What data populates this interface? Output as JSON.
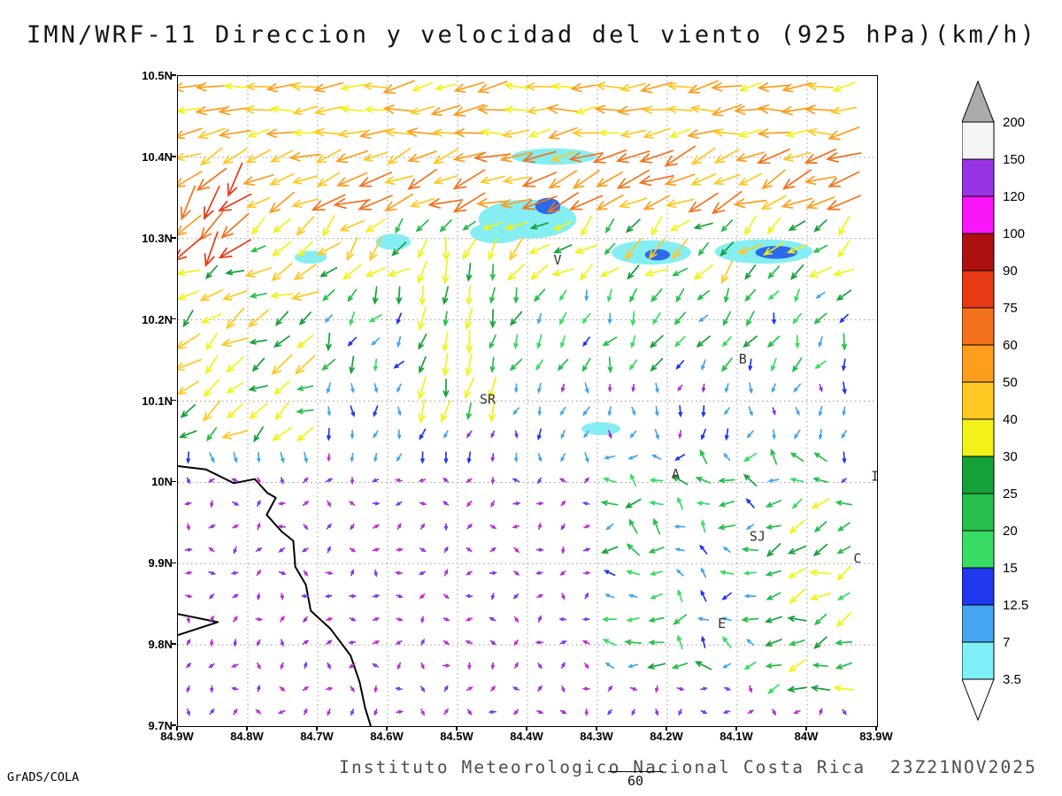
{
  "title": "IMN/WRF-11 Direccion y velocidad del viento (925 hPa)(km/h)",
  "footer": "Instituto Meteorologico Nacional Costa Rica  23Z21NOV2025",
  "credits": "GrADS/COLA",
  "ref_vector_label": "60",
  "chart_data": {
    "type": "vector_field",
    "title": "IMN/WRF-11 Direccion y velocidad del viento (925 hPa)(km/h)",
    "units": "km/h",
    "level": "925 hPa",
    "valid_time": "23Z21NOV2025",
    "institution": "Instituto Meteorologico Nacional Costa Rica",
    "reference_vector": 60,
    "grid_on": true,
    "grid_color": "#999999",
    "lon_axis": {
      "labels": [
        "84.9W",
        "84.8W",
        "84.7W",
        "84.6W",
        "84.5W",
        "84.4W",
        "84.3W",
        "84.2W",
        "84.1W",
        "84W",
        "83.9W"
      ],
      "values": [
        84.9,
        84.8,
        84.7,
        84.6,
        84.5,
        84.4,
        84.3,
        84.2,
        84.1,
        84.0,
        83.9
      ]
    },
    "lat_axis": {
      "labels": [
        "10.5N",
        "10.4N",
        "10.3N",
        "10.2N",
        "10.1N",
        "10N",
        "9.9N",
        "9.8N",
        "9.7N"
      ],
      "values": [
        10.5,
        10.4,
        10.3,
        10.2,
        10.1,
        10.0,
        9.9,
        9.8,
        9.7
      ]
    },
    "colorbar": {
      "position": "right",
      "labels_top_to_bottom": [
        "200",
        "150",
        "120",
        "100",
        "90",
        "75",
        "60",
        "50",
        "40",
        "30",
        "25",
        "20",
        "15",
        "12.5",
        "7",
        "3.5"
      ],
      "colors_top_to_bottom": [
        "#F4F4F4",
        "#9933E6",
        "#FA14FA",
        "#AE1010",
        "#E63914",
        "#F4711C",
        "#FF9D1E",
        "#FFC822",
        "#F2F218",
        "#16A038",
        "#27BE4B",
        "#38DC62",
        "#2038EE",
        "#45A5F0",
        "#7FF0F8"
      ],
      "above_color": "#ABABAB",
      "below_color": "#FFFFFF"
    },
    "cloud_colors": {
      "light": "#85EEF2",
      "core": "#2B6BEA"
    },
    "cloud_shading": [
      {
        "lon": 84.362,
        "lat": 10.401,
        "rlon": 0.061,
        "rlat": 0.01,
        "level": "light"
      },
      {
        "lon": 84.4,
        "lat": 10.324,
        "rlon": 0.07,
        "rlat": 0.024,
        "level": "light"
      },
      {
        "lon": 84.444,
        "lat": 10.307,
        "rlon": 0.038,
        "rlat": 0.013,
        "level": "light"
      },
      {
        "lon": 84.71,
        "lat": 10.277,
        "rlon": 0.023,
        "rlat": 0.008,
        "level": "light"
      },
      {
        "lon": 84.592,
        "lat": 10.296,
        "rlon": 0.025,
        "rlat": 0.01,
        "level": "light"
      },
      {
        "lon": 84.223,
        "lat": 10.283,
        "rlon": 0.057,
        "rlat": 0.015,
        "level": "light"
      },
      {
        "lon": 84.062,
        "lat": 10.284,
        "rlon": 0.07,
        "rlat": 0.015,
        "level": "light"
      },
      {
        "lon": 84.295,
        "lat": 10.066,
        "rlon": 0.028,
        "rlat": 0.008,
        "level": "light"
      },
      {
        "lon": 84.371,
        "lat": 10.34,
        "rlon": 0.018,
        "rlat": 0.01,
        "level": "core"
      },
      {
        "lon": 84.214,
        "lat": 10.28,
        "rlon": 0.018,
        "rlat": 0.007,
        "level": "core"
      },
      {
        "lon": 84.044,
        "lat": 10.283,
        "rlon": 0.03,
        "rlat": 0.008,
        "level": "core"
      }
    ],
    "coastline": [
      [
        [
          84.9,
          10.02
        ],
        [
          84.86,
          10.016
        ],
        [
          84.82,
          9.999
        ],
        [
          84.79,
          10.004
        ],
        [
          84.772,
          9.987
        ],
        [
          84.76,
          9.981
        ],
        [
          84.773,
          9.96
        ],
        [
          84.751,
          9.939
        ],
        [
          84.735,
          9.928
        ],
        [
          84.732,
          9.896
        ],
        [
          84.717,
          9.874
        ],
        [
          84.71,
          9.842
        ],
        [
          84.682,
          9.82
        ],
        [
          84.653,
          9.787
        ],
        [
          84.64,
          9.754
        ],
        [
          84.632,
          9.722
        ],
        [
          84.624,
          9.7
        ]
      ],
      [
        [
          84.9,
          9.838
        ],
        [
          84.843,
          9.828
        ],
        [
          84.9,
          9.812
        ]
      ]
    ],
    "stations": [
      {
        "label": "V",
        "lon": 84.357,
        "lat": 10.268
      },
      {
        "label": "B",
        "lon": 84.092,
        "lat": 10.146
      },
      {
        "label": "SR",
        "lon": 84.457,
        "lat": 10.097
      },
      {
        "label": "A",
        "lon": 84.188,
        "lat": 10.005
      },
      {
        "label": "SJ",
        "lon": 84.071,
        "lat": 9.928
      },
      {
        "label": "C",
        "lon": 83.928,
        "lat": 9.901
      },
      {
        "label": "E",
        "lon": 84.122,
        "lat": 9.821
      },
      {
        "label": "I",
        "lon": 83.903,
        "lat": 10.002
      }
    ],
    "arrow_palette": {
      "calm_below": 6.5,
      "calm_colors": [
        "#9B30DC",
        "#B333D6",
        "#7E3BE8",
        "#C42ECF"
      ],
      "thresholds": [
        7,
        12.5,
        15,
        20,
        25,
        30,
        40,
        50,
        60,
        75,
        90,
        100
      ],
      "colors": [
        "#9B30DC",
        "#45A5F0",
        "#2038EE",
        "#38DC62",
        "#27BE4B",
        "#16A038",
        "#F2F218",
        "#FFC822",
        "#FF9D1E",
        "#F4711C",
        "#E63914",
        "#AE1010",
        "#F514F5"
      ]
    },
    "flow_model": {
      "grid": {
        "lon_start": 84.885,
        "lon_end": 83.915,
        "lon_step": 0.0335,
        "lat_start": 10.487,
        "lat_end": 9.712,
        "lat_step": 0.0285
      },
      "bands": [
        {
          "lat_min": 10.42,
          "lat_max": 10.55,
          "dir": 264,
          "dir_var": 16,
          "speed": 46,
          "speed_var": 13
        },
        {
          "lat_min": 10.32,
          "lat_max": 10.42,
          "dir": 247,
          "dir_var": 18,
          "speed": 56,
          "speed_var": 15
        },
        {
          "lat_min": 10.24,
          "lat_max": 10.32,
          "dir": 230,
          "dir_var": 26,
          "speed": 33,
          "speed_var": 12
        },
        {
          "lat_min": 10.12,
          "lat_max": 10.24,
          "dir": 207,
          "dir_var": 32,
          "speed": 19,
          "speed_var": 8
        },
        {
          "lat_min": 10.02,
          "lat_max": 10.12,
          "dir": 190,
          "dir_var": 36,
          "speed": 10,
          "speed_var": 5
        },
        {
          "lat_min": 9.6,
          "lat_max": 10.02,
          "dir": 165,
          "dir_var": 150,
          "speed": 3.0,
          "speed_var": 2.0
        }
      ],
      "patches": [
        {
          "lon_min": 84.7,
          "lon_max": 84.92,
          "lat_min": 10.04,
          "lat_max": 10.28,
          "dir": 237,
          "dir_var": 28,
          "speed": 36,
          "speed_var": 13
        },
        {
          "lon_min": 84.8,
          "lon_max": 84.92,
          "lat_min": 10.28,
          "lat_max": 10.38,
          "dir": 228,
          "dir_var": 30,
          "speed": 68,
          "speed_var": 22
        },
        {
          "lon_min": 84.44,
          "lon_max": 84.58,
          "lat_min": 10.08,
          "lat_max": 10.3,
          "dir": 196,
          "dir_var": 18,
          "speed": 30,
          "speed_var": 10
        },
        {
          "lon_min": 83.95,
          "lon_max": 84.3,
          "lat_min": 9.76,
          "lat_max": 10.04,
          "dir": 288,
          "dir_var": 60,
          "speed": 17,
          "speed_var": 10
        },
        {
          "lon_min": 83.9,
          "lon_max": 84.06,
          "lat_min": 9.72,
          "lat_max": 9.98,
          "dir": 252,
          "dir_var": 30,
          "speed": 26,
          "speed_var": 9
        }
      ]
    }
  }
}
